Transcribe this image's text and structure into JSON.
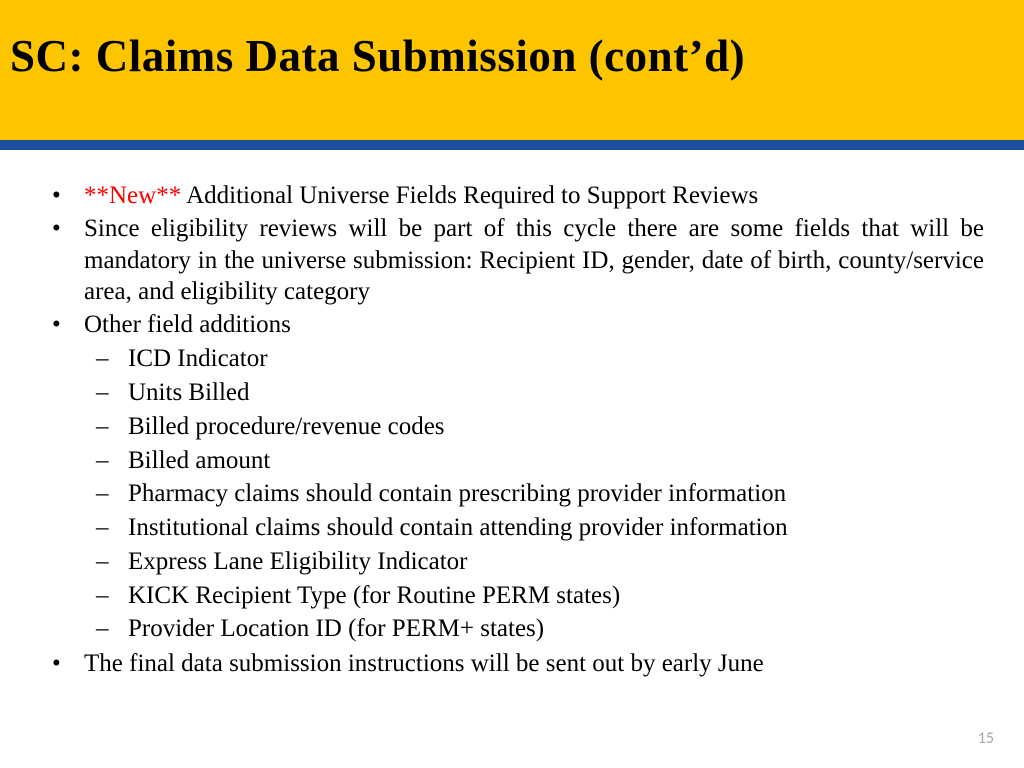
{
  "colors": {
    "header_bg": "#fdc500",
    "divider": "#1f4e9c",
    "new_tag": "#ff0000",
    "page_number": "#a6a6a6",
    "body_bg": "#ffffff",
    "text": "#000000"
  },
  "header": {
    "title": "SC: Claims Data Submission (cont’d)"
  },
  "bullets": {
    "b1_new": "**New**",
    "b1_rest": " Additional Universe Fields Required to Support Reviews",
    "b2": "Since eligibility reviews will be part of this cycle there are some fields that will be mandatory in the universe submission: Recipient ID, gender, date of birth, county/service area, and eligibility category",
    "b3": "Other field additions",
    "b3_sub": [
      "ICD Indicator",
      "Units Billed",
      "Billed procedure/revenue codes",
      "Billed amount",
      "Pharmacy claims should contain prescribing provider information",
      "Institutional claims should contain attending provider information",
      "Express Lane Eligibility Indicator",
      "KICK Recipient Type (for Routine PERM states)",
      "Provider Location ID (for PERM+ states)"
    ],
    "b4": "The final data submission instructions will be sent out by early June"
  },
  "page_number": "15"
}
